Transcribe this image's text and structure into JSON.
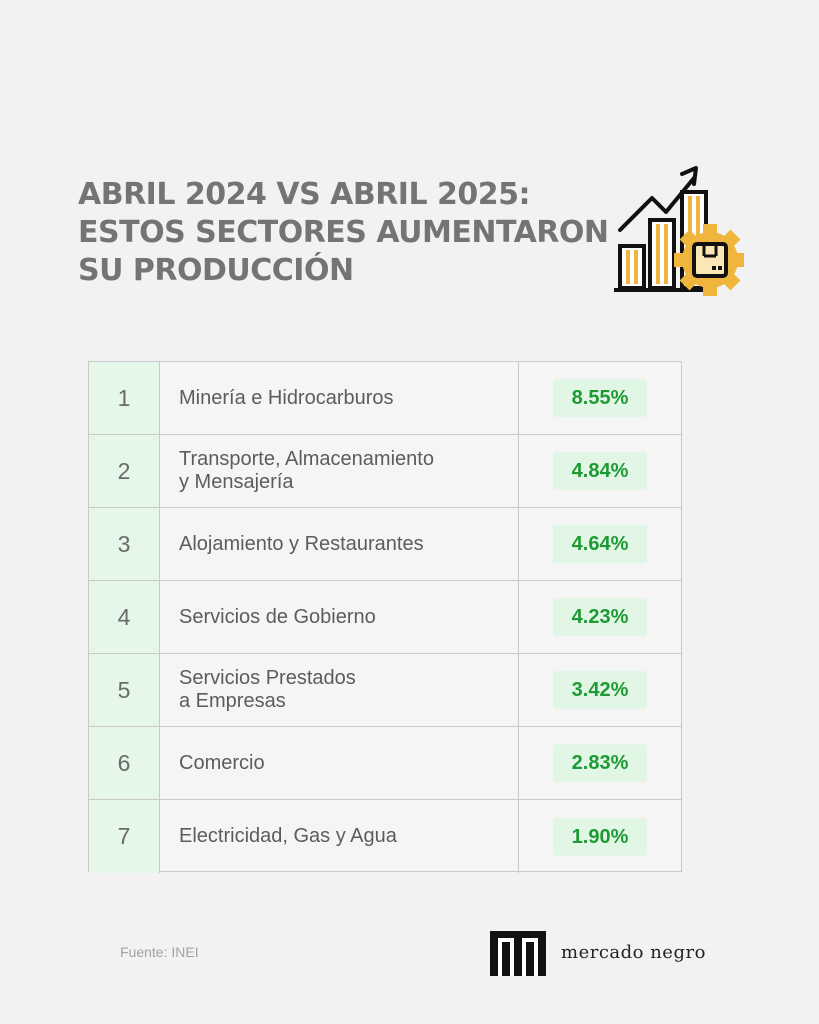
{
  "header": {
    "title_lines": [
      "ABRIL 2024 VS ABRIL 2025:",
      "ESTOS SECTORES AUMENTARON",
      "SU PRODUCCIÓN"
    ],
    "icon": "growth-chart-box-gear-icon"
  },
  "table": {
    "rows": [
      {
        "rank": "1",
        "sector": "Minería e Hidrocarburos",
        "value": "8.55%"
      },
      {
        "rank": "2",
        "sector": "Transporte, Almacenamiento\ny Mensajería",
        "value": "4.84%"
      },
      {
        "rank": "3",
        "sector": "Alojamiento y Restaurantes",
        "value": "4.64%"
      },
      {
        "rank": "4",
        "sector": "Servicios de Gobierno",
        "value": "4.23%"
      },
      {
        "rank": "5",
        "sector": "Servicios Prestados\na Empresas",
        "value": "3.42%"
      },
      {
        "rank": "6",
        "sector": "Comercio",
        "value": "2.83%"
      },
      {
        "rank": "7",
        "sector": "Electricidad, Gas y Agua",
        "value": "1.90%"
      }
    ]
  },
  "footer": {
    "source": "Fuente:  INEI",
    "brand": "mercado negro",
    "brand_icon": "mercado-negro-logo-mark"
  },
  "colors": {
    "background": "#f2f2f2",
    "title": "#747474",
    "rank_cell": "#e4f7e9",
    "value_pill": "#e1f6e5",
    "value_text": "#1e9a34",
    "icon_accent": "#f0b53c"
  }
}
